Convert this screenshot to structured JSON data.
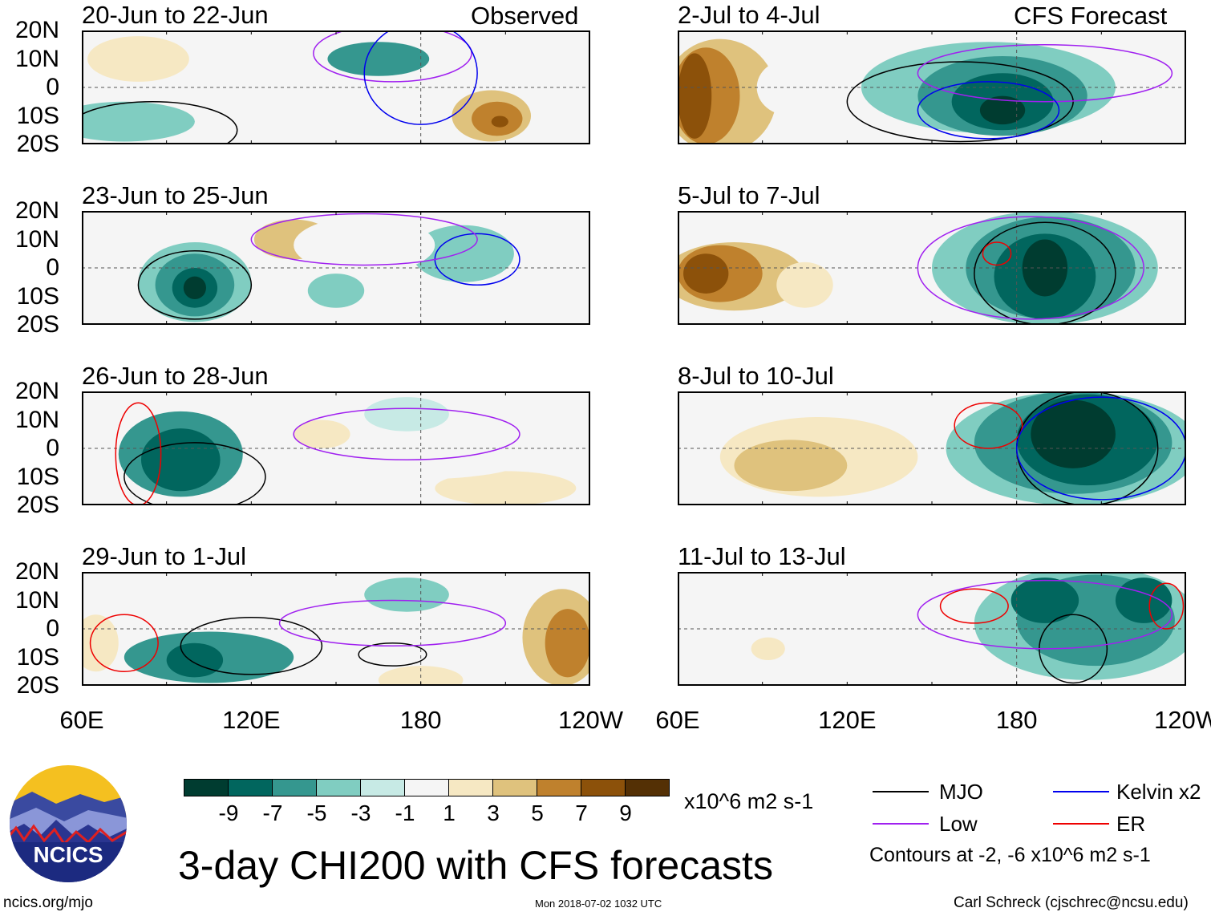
{
  "chart_data": {
    "type": "heatmap",
    "title": "3-day CHI200 with CFS forecasts",
    "units": "x10^6 m2 s-1",
    "lat_ticks": [
      "20N",
      "10N",
      "0",
      "10S",
      "20S"
    ],
    "lon_ticks": [
      "60E",
      "120E",
      "180",
      "120W"
    ],
    "lon_range": [
      60,
      240
    ],
    "lat_range": [
      -20,
      20
    ],
    "column_labels": [
      "Observed",
      "CFS Forecast"
    ],
    "colorbar": {
      "ticks": [
        "-9",
        "-7",
        "-5",
        "-3",
        "-1",
        "1",
        "3",
        "5",
        "7",
        "9"
      ],
      "colors": [
        "#003c30",
        "#01665e",
        "#35978f",
        "#80cdc1",
        "#c7eae5",
        "#f5f5f5",
        "#f6e8c3",
        "#dfc27d",
        "#bf812d",
        "#8c510a",
        "#543005"
      ]
    },
    "panels": [
      {
        "title": "20-Jun to 22-Jun",
        "col": 0,
        "row": 0,
        "features": [
          [
            80,
            10,
            18,
            8,
            3
          ],
          [
            75,
            -12,
            25,
            7,
            -3
          ],
          [
            165,
            10,
            18,
            6,
            -5
          ],
          [
            205,
            -10,
            14,
            9,
            5
          ],
          [
            207,
            -11,
            9,
            6,
            7
          ],
          [
            208,
            -12,
            3,
            2,
            9
          ],
          [
            135,
            2,
            15,
            8,
            1
          ]
        ],
        "contours": [
          {
            "t": "MJO",
            "lon": 85,
            "lat": -15,
            "rl": 30,
            "ra": 10
          },
          {
            "t": "Low",
            "lon": 170,
            "lat": 12,
            "rl": 28,
            "ra": 10
          },
          {
            "t": "Kelvin",
            "lon": 180,
            "lat": 5,
            "rl": 20,
            "ra": 18
          }
        ]
      },
      {
        "title": "23-Jun to 25-Jun",
        "col": 0,
        "row": 1,
        "features": [
          [
            100,
            -5,
            20,
            14,
            -3
          ],
          [
            100,
            -6,
            14,
            11,
            -5
          ],
          [
            100,
            -7,
            8,
            7,
            -7
          ],
          [
            100,
            -7,
            4,
            4,
            -9
          ],
          [
            135,
            10,
            14,
            7,
            5
          ],
          [
            150,
            -8,
            10,
            6,
            -3
          ],
          [
            195,
            5,
            18,
            10,
            -3
          ],
          [
            160,
            8,
            25,
            10,
            1
          ]
        ],
        "contours": [
          {
            "t": "MJO",
            "lon": 100,
            "lat": -6,
            "rl": 20,
            "ra": 12
          },
          {
            "t": "Kelvin",
            "lon": 200,
            "lat": 3,
            "rl": 15,
            "ra": 9
          },
          {
            "t": "Low",
            "lon": 160,
            "lat": 10,
            "rl": 40,
            "ra": 9
          }
        ]
      },
      {
        "title": "26-Jun to 28-Jun",
        "col": 0,
        "row": 2,
        "features": [
          [
            95,
            -2,
            22,
            15,
            -5
          ],
          [
            95,
            -4,
            14,
            11,
            -7
          ],
          [
            145,
            5,
            10,
            5,
            3
          ],
          [
            210,
            -14,
            25,
            6,
            3
          ],
          [
            175,
            12,
            15,
            6,
            -1
          ],
          [
            175,
            -5,
            40,
            6,
            1
          ]
        ],
        "contours": [
          {
            "t": "MJO",
            "lon": 100,
            "lat": -10,
            "rl": 25,
            "ra": 12
          },
          {
            "t": "ER",
            "lon": 80,
            "lat": -2,
            "rl": 8,
            "ra": 18
          },
          {
            "t": "Low",
            "lon": 175,
            "lat": 5,
            "rl": 40,
            "ra": 9
          }
        ]
      },
      {
        "title": "29-Jun to 1-Jul",
        "col": 0,
        "row": 3,
        "features": [
          [
            105,
            -10,
            30,
            9,
            -5
          ],
          [
            100,
            -11,
            10,
            6,
            -7
          ],
          [
            175,
            12,
            15,
            6,
            -3
          ],
          [
            230,
            -3,
            14,
            17,
            5
          ],
          [
            232,
            -5,
            8,
            12,
            7
          ],
          [
            65,
            -5,
            8,
            10,
            3
          ],
          [
            180,
            -18,
            15,
            5,
            3
          ]
        ],
        "contours": [
          {
            "t": "MJO",
            "lon": 120,
            "lat": -6,
            "rl": 25,
            "ra": 10
          },
          {
            "t": "MJO",
            "lon": 170,
            "lat": -9,
            "rl": 12,
            "ra": 4
          },
          {
            "t": "ER",
            "lon": 75,
            "lat": -5,
            "rl": 12,
            "ra": 10
          },
          {
            "t": "Low",
            "lon": 170,
            "lat": 2,
            "rl": 40,
            "ra": 8
          }
        ]
      },
      {
        "title": "2-Jul to 4-Jul",
        "col": 1,
        "row": 0,
        "features": [
          [
            75,
            -3,
            20,
            20,
            5
          ],
          [
            70,
            -3,
            12,
            17,
            7
          ],
          [
            66,
            -3,
            6,
            15,
            9
          ],
          [
            170,
            0,
            45,
            16,
            -3
          ],
          [
            175,
            -3,
            30,
            14,
            -5
          ],
          [
            175,
            -5,
            18,
            10,
            -7
          ],
          [
            175,
            -8,
            8,
            5,
            -9
          ],
          [
            100,
            0,
            12,
            10,
            1
          ]
        ],
        "contours": [
          {
            "t": "MJO",
            "lon": 160,
            "lat": -5,
            "rl": 40,
            "ra": 14
          },
          {
            "t": "Low",
            "lon": 190,
            "lat": 5,
            "rl": 45,
            "ra": 10
          },
          {
            "t": "Kelvin",
            "lon": 170,
            "lat": -8,
            "rl": 25,
            "ra": 10
          }
        ]
      },
      {
        "title": "5-Jul to 7-Jul",
        "col": 1,
        "row": 1,
        "features": [
          [
            80,
            -3,
            25,
            12,
            5
          ],
          [
            75,
            -2,
            15,
            10,
            7
          ],
          [
            70,
            -2,
            8,
            7,
            9
          ],
          [
            105,
            -6,
            10,
            8,
            3
          ],
          [
            190,
            0,
            40,
            20,
            -3
          ],
          [
            192,
            0,
            30,
            18,
            -5
          ],
          [
            190,
            -3,
            18,
            15,
            -7
          ],
          [
            190,
            0,
            8,
            10,
            -9
          ]
        ],
        "contours": [
          {
            "t": "MJO",
            "lon": 190,
            "lat": -2,
            "rl": 25,
            "ra": 18
          },
          {
            "t": "ER",
            "lon": 173,
            "lat": 5,
            "rl": 5,
            "ra": 4
          },
          {
            "t": "Low",
            "lon": 185,
            "lat": 0,
            "rl": 40,
            "ra": 18
          }
        ]
      },
      {
        "title": "8-Jul to 10-Jul",
        "col": 1,
        "row": 2,
        "features": [
          [
            110,
            -3,
            35,
            14,
            3
          ],
          [
            100,
            -6,
            20,
            9,
            5
          ],
          [
            200,
            0,
            45,
            20,
            -3
          ],
          [
            200,
            2,
            35,
            18,
            -5
          ],
          [
            205,
            3,
            25,
            16,
            -7
          ],
          [
            200,
            5,
            15,
            12,
            -9
          ]
        ],
        "contours": [
          {
            "t": "MJO",
            "lon": 205,
            "lat": 0,
            "rl": 25,
            "ra": 20
          },
          {
            "t": "ER",
            "lon": 170,
            "lat": 8,
            "rl": 12,
            "ra": 8
          },
          {
            "t": "Kelvin",
            "lon": 210,
            "lat": 0,
            "rl": 30,
            "ra": 18
          }
        ]
      },
      {
        "title": "11-Jul to 13-Jul",
        "col": 1,
        "row": 3,
        "features": [
          [
            100,
            -5,
            40,
            14,
            1
          ],
          [
            92,
            -7,
            6,
            4,
            3
          ],
          [
            205,
            2,
            40,
            20,
            -3
          ],
          [
            208,
            3,
            28,
            16,
            -5
          ],
          [
            225,
            10,
            10,
            8,
            -7
          ],
          [
            190,
            10,
            12,
            8,
            -7
          ]
        ],
        "contours": [
          {
            "t": "MJO",
            "lon": 200,
            "lat": -7,
            "rl": 12,
            "ra": 12
          },
          {
            "t": "ER",
            "lon": 165,
            "lat": 8,
            "rl": 12,
            "ra": 6
          },
          {
            "t": "ER",
            "lon": 233,
            "lat": 8,
            "rl": 6,
            "ra": 8
          },
          {
            "t": "Low",
            "lon": 190,
            "lat": 5,
            "rl": 45,
            "ra": 12
          }
        ]
      }
    ]
  },
  "legend": {
    "items": [
      {
        "label": "MJO",
        "color": "#000000"
      },
      {
        "label": "Kelvin x2",
        "color": "#0000ee"
      },
      {
        "label": "Low",
        "color": "#a020f0"
      },
      {
        "label": "ER",
        "color": "#ee0000"
      }
    ],
    "note": "Contours at -2, -6 x10^6 m2 s-1"
  },
  "footer": {
    "url": "ncics.org/mjo",
    "timestamp": "Mon 2018-07-02 1032 UTC",
    "author": "Carl Schreck (cjschrec@ncsu.edu)"
  },
  "logo": {
    "text": "NCICS"
  }
}
